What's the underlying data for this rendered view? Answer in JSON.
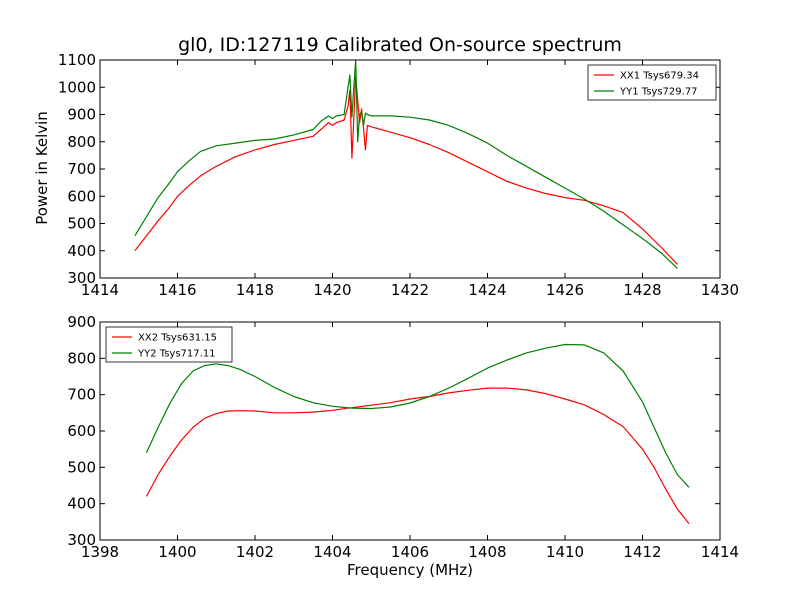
{
  "chart_data": [
    {
      "type": "line",
      "title": "gl0, ID:127119 Calibrated On-source spectrum",
      "xlabel": "",
      "ylabel": "Power in Kelvin",
      "xlim": [
        1414,
        1430
      ],
      "ylim": [
        300,
        1100
      ],
      "xticks": [
        "1414",
        "1416",
        "1418",
        "1420",
        "1422",
        "1424",
        "1426",
        "1428",
        "1430"
      ],
      "yticks": [
        "300",
        "400",
        "500",
        "600",
        "700",
        "800",
        "900",
        "1000",
        "1100"
      ],
      "legend_position": "top-right",
      "grid": false,
      "series": [
        {
          "name": "XX1 Tsys679.34",
          "color": "#ff0000",
          "x": [
            1414.9,
            1415.2,
            1415.5,
            1415.8,
            1416.0,
            1416.3,
            1416.6,
            1417.0,
            1417.5,
            1418.0,
            1418.5,
            1419.0,
            1419.5,
            1419.7,
            1419.9,
            1420.0,
            1420.1,
            1420.3,
            1420.4,
            1420.45,
            1420.5,
            1420.55,
            1420.6,
            1420.7,
            1420.75,
            1420.8,
            1420.85,
            1420.9,
            1421.0,
            1421.5,
            1422.0,
            1422.5,
            1423.0,
            1423.5,
            1424.0,
            1424.5,
            1425.0,
            1425.5,
            1426.0,
            1426.5,
            1427.0,
            1427.5,
            1428.0,
            1428.5,
            1428.9
          ],
          "y": [
            400,
            455,
            510,
            560,
            600,
            640,
            675,
            710,
            745,
            770,
            790,
            805,
            820,
            845,
            870,
            860,
            870,
            880,
            930,
            990,
            740,
            880,
            1040,
            870,
            920,
            850,
            770,
            860,
            855,
            835,
            815,
            790,
            760,
            725,
            690,
            655,
            630,
            610,
            595,
            585,
            565,
            540,
            480,
            410,
            350
          ]
        },
        {
          "name": "YY1 Tsys729.77",
          "color": "#008000",
          "x": [
            1414.9,
            1415.2,
            1415.5,
            1415.8,
            1416.0,
            1416.3,
            1416.6,
            1417.0,
            1417.5,
            1418.0,
            1418.5,
            1419.0,
            1419.5,
            1419.7,
            1419.9,
            1420.0,
            1420.1,
            1420.3,
            1420.4,
            1420.45,
            1420.5,
            1420.55,
            1420.6,
            1420.65,
            1420.7,
            1420.75,
            1420.8,
            1420.85,
            1420.9,
            1421.0,
            1421.5,
            1422.0,
            1422.5,
            1423.0,
            1423.5,
            1424.0,
            1424.5,
            1425.0,
            1425.5,
            1426.0,
            1426.5,
            1427.0,
            1427.5,
            1428.0,
            1428.5,
            1428.9
          ],
          "y": [
            455,
            525,
            595,
            650,
            690,
            730,
            765,
            785,
            795,
            805,
            810,
            825,
            845,
            875,
            895,
            885,
            895,
            900,
            1000,
            1045,
            890,
            1000,
            1100,
            800,
            900,
            910,
            860,
            905,
            900,
            895,
            895,
            890,
            880,
            860,
            830,
            795,
            750,
            710,
            670,
            630,
            590,
            545,
            495,
            445,
            390,
            335
          ]
        }
      ]
    },
    {
      "type": "line",
      "title": "",
      "xlabel": "Frequency (MHz)",
      "ylabel": "",
      "xlim": [
        1398,
        1414
      ],
      "ylim": [
        300,
        900
      ],
      "xticks": [
        "1398",
        "1400",
        "1402",
        "1404",
        "1406",
        "1408",
        "1410",
        "1412",
        "1414"
      ],
      "yticks": [
        "300",
        "400",
        "500",
        "600",
        "700",
        "800",
        "900"
      ],
      "legend_position": "top-left",
      "grid": false,
      "series": [
        {
          "name": "XX2 Tsys631.15",
          "color": "#ff0000",
          "x": [
            1399.2,
            1399.5,
            1399.8,
            1400.1,
            1400.4,
            1400.7,
            1401.0,
            1401.3,
            1401.6,
            1402.0,
            1402.5,
            1403.0,
            1403.5,
            1404.0,
            1404.5,
            1405.0,
            1405.5,
            1406.0,
            1406.5,
            1407.0,
            1407.5,
            1408.0,
            1408.5,
            1409.0,
            1409.5,
            1410.0,
            1410.5,
            1411.0,
            1411.5,
            1412.0,
            1412.3,
            1412.6,
            1412.9,
            1413.2
          ],
          "y": [
            420,
            480,
            530,
            575,
            610,
            635,
            648,
            655,
            656,
            655,
            650,
            650,
            652,
            657,
            664,
            671,
            678,
            688,
            695,
            705,
            712,
            718,
            718,
            713,
            703,
            688,
            672,
            645,
            612,
            550,
            500,
            440,
            385,
            345
          ]
        },
        {
          "name": "YY2 Tsys717.11",
          "color": "#008000",
          "x": [
            1399.2,
            1399.5,
            1399.8,
            1400.1,
            1400.4,
            1400.7,
            1401.0,
            1401.3,
            1401.6,
            1402.0,
            1402.5,
            1403.0,
            1403.5,
            1404.0,
            1404.5,
            1405.0,
            1405.5,
            1406.0,
            1406.5,
            1407.0,
            1407.5,
            1408.0,
            1408.5,
            1409.0,
            1409.5,
            1410.0,
            1410.5,
            1411.0,
            1411.5,
            1412.0,
            1412.3,
            1412.6,
            1412.9,
            1413.2
          ],
          "y": [
            540,
            610,
            675,
            730,
            765,
            780,
            785,
            780,
            770,
            750,
            720,
            695,
            678,
            668,
            663,
            662,
            666,
            677,
            695,
            718,
            745,
            773,
            795,
            815,
            828,
            838,
            837,
            815,
            765,
            680,
            610,
            540,
            480,
            445
          ]
        }
      ]
    }
  ]
}
